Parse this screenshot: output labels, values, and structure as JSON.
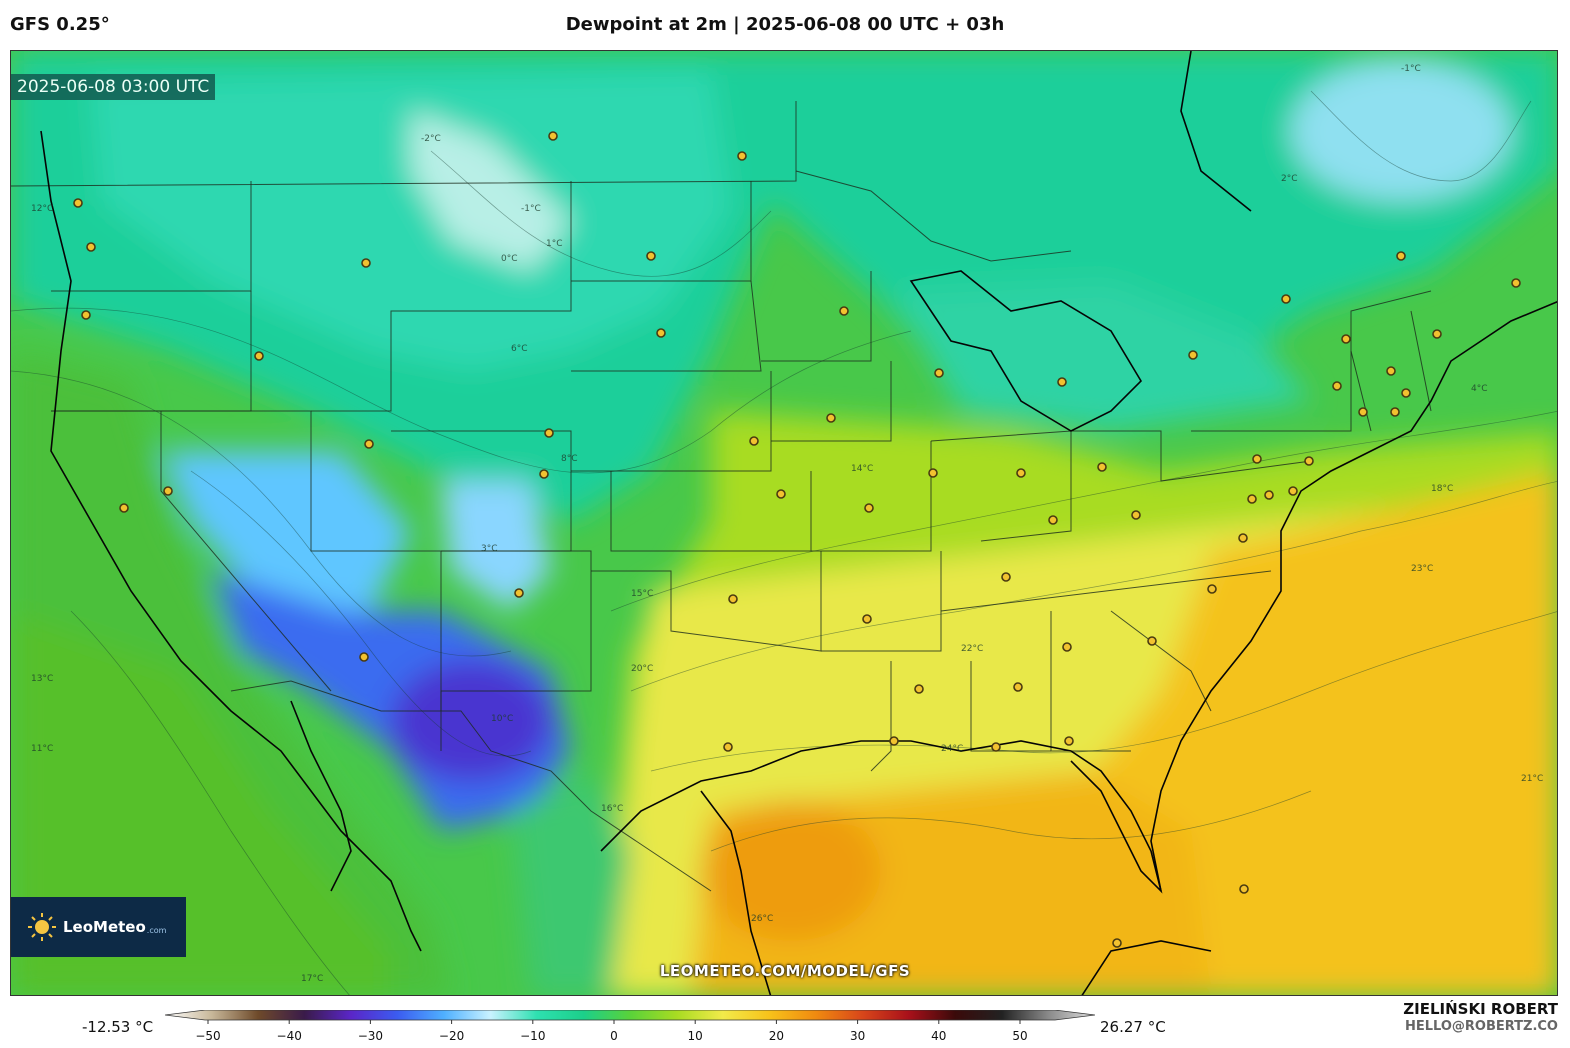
{
  "model_label": "GFS 0.25°",
  "title": "Dewpoint at 2m | 2025-06-08 00 UTC + 03h",
  "valid_time": "2025-06-08 03:00 UTC",
  "logo": {
    "brand": "LeoMeteo",
    "suffix": ".com"
  },
  "watermark": "LEOMETEO.COM/MODEL/GFS",
  "colorbar": {
    "min_label": "-12.53 °C",
    "max_label": "26.27 °C",
    "ticks": [
      "−50",
      "−40",
      "−30",
      "−20",
      "−10",
      "0",
      "10",
      "20",
      "30",
      "40",
      "50"
    ],
    "stops": [
      "#ffffff",
      "#c8b89a",
      "#6e4a2a",
      "#3a1b4a",
      "#5a26c8",
      "#3b5cf0",
      "#4fb0ff",
      "#c9f2ff",
      "#2ee0b0",
      "#1ccf8a",
      "#59d23a",
      "#a8dc22",
      "#f2ea4a",
      "#f7c21a",
      "#f08a10",
      "#d8461a",
      "#a8101a",
      "#3a0a0a",
      "#222222",
      "#8a8a8a",
      "#e0e0e0"
    ]
  },
  "author": {
    "name": "ZIELIŃSKI ROBERT",
    "email": "HELLO@ROBERTZ.CO"
  },
  "contour_labels": [
    "12°C",
    "-1°C",
    "0°C",
    "1°C",
    "2°C",
    "4°C",
    "6°C",
    "3°C",
    "8°C",
    "10°C",
    "14°C",
    "15°C",
    "16°C",
    "17°C",
    "18°C",
    "20°C",
    "21°C",
    "22°C",
    "23°C",
    "24°C",
    "26°C",
    "13°C",
    "11°C",
    "-2°C",
    "-1°C"
  ]
}
